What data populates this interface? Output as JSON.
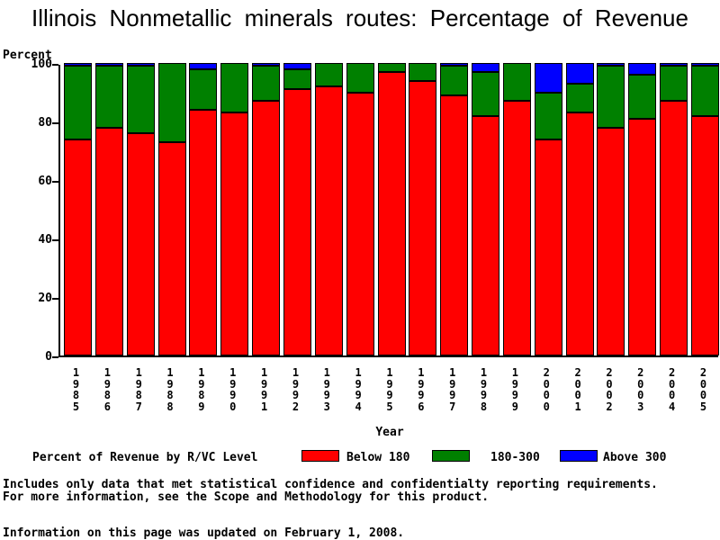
{
  "chart_data": {
    "type": "bar",
    "stacked": true,
    "title": "Illinois Nonmetallic minerals routes: Percentage of Revenue",
    "ylabel": "Percent",
    "xlabel": "Year",
    "ylim": [
      0,
      100
    ],
    "yticks": [
      0,
      20,
      40,
      60,
      80,
      100
    ],
    "grid": false,
    "legend_title": "Percent of Revenue by R/VC Level",
    "legend_position": "bottom",
    "categories": [
      "1985",
      "1986",
      "1987",
      "1988",
      "1989",
      "1990",
      "1991",
      "1992",
      "1993",
      "1994",
      "1995",
      "1996",
      "1997",
      "1998",
      "1999",
      "2000",
      "2001",
      "2002",
      "2003",
      "2004",
      "2005"
    ],
    "series": [
      {
        "name": "Below 180",
        "color": "#ff0000",
        "values": [
          74,
          78,
          76,
          73,
          84,
          83,
          87,
          91,
          92,
          90,
          97,
          94,
          89,
          82,
          87,
          74,
          83,
          78,
          81,
          87,
          82
        ]
      },
      {
        "name": "180-300",
        "color": "#008000",
        "values": [
          25,
          21,
          23,
          27,
          14,
          17,
          12,
          7,
          8,
          10,
          3,
          6,
          10,
          15,
          13,
          16,
          10,
          21,
          15,
          12,
          17
        ]
      },
      {
        "name": "Above 300",
        "color": "#0000ff",
        "values": [
          1,
          1,
          1,
          0,
          2,
          0,
          1,
          2,
          0,
          0,
          0,
          0,
          1,
          3,
          0,
          10,
          7,
          1,
          4,
          1,
          1
        ]
      }
    ]
  },
  "footer": {
    "line1": "Includes only data that met statistical confidence and confidentialty reporting requirements.",
    "line2": "For more information, see the Scope and Methodology for this product.",
    "line3": "Information on this page was updated on February 1, 2008."
  }
}
